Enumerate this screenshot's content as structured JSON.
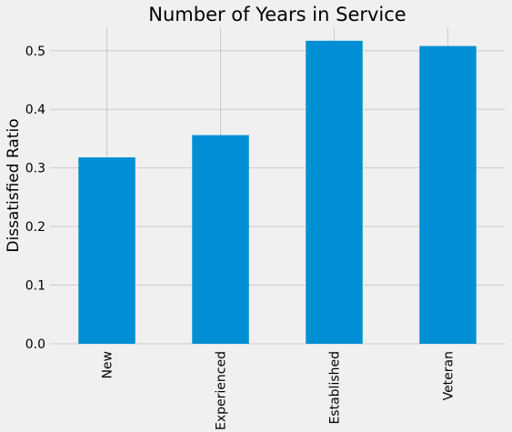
{
  "chart_data": {
    "type": "bar",
    "title": "Number of Years in Service",
    "xlabel": "",
    "ylabel": "Dissatisfied Ratio",
    "categories": [
      "New",
      "Experienced",
      "Established",
      "Veteran"
    ],
    "values": [
      0.318,
      0.356,
      0.517,
      0.508
    ],
    "ylim": [
      0,
      0.54
    ],
    "yticks": [
      "0.0",
      "0.1",
      "0.2",
      "0.3",
      "0.4",
      "0.5"
    ],
    "bar_color": "#008fd5",
    "background_color": "#f0f0f0",
    "grid_color": "#cbcbcb",
    "grid": true,
    "legend": false
  }
}
